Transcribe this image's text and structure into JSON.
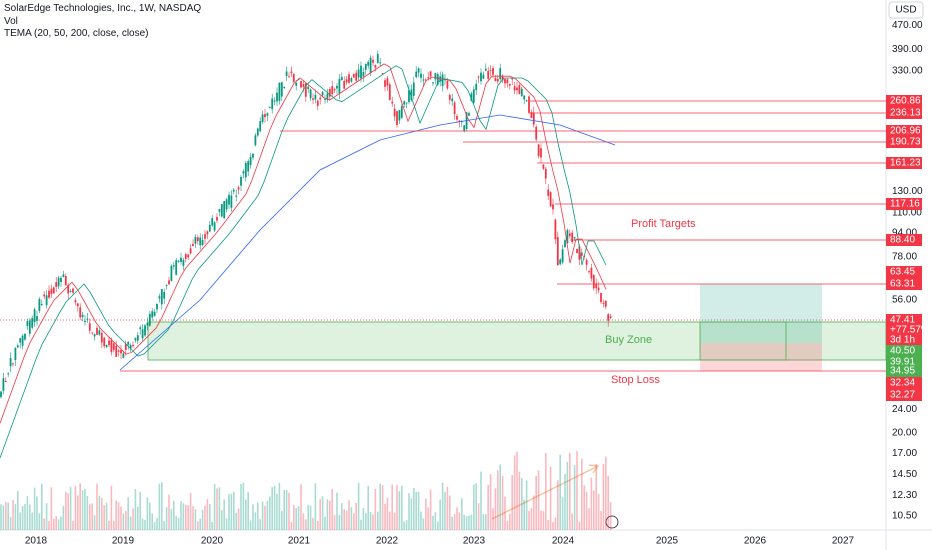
{
  "header": {
    "title": "SolarEdge Technologies, Inc., 1W, NASDAQ",
    "volume": "Vol",
    "indicator": "TEMA (20, 50, 200, close, close)",
    "currency": "USD"
  },
  "price_axis": [
    "470.00",
    "390.00",
    "330.00",
    "130.00",
    "110.00",
    "94.00",
    "78.00",
    "56.00",
    "24.00",
    "20.00",
    "17.00",
    "14.50",
    "12.30",
    "10.50"
  ],
  "level_tags": [
    {
      "label": "260.86",
      "kind": "red"
    },
    {
      "label": "236.13",
      "kind": "red"
    },
    {
      "label": "206.96",
      "kind": "red"
    },
    {
      "label": "190.73",
      "kind": "red"
    },
    {
      "label": "161.23",
      "kind": "red"
    },
    {
      "label": "117.16",
      "kind": "red"
    },
    {
      "label": "88.40",
      "kind": "red"
    },
    {
      "label": "63.45",
      "kind": "red"
    },
    {
      "label": "63.31",
      "kind": "red"
    },
    {
      "label": "47.41",
      "kind": "red"
    },
    {
      "label": "+77.57%",
      "kind": "red"
    },
    {
      "label": "3d 1h",
      "kind": "red"
    },
    {
      "label": "40.50",
      "kind": "green"
    },
    {
      "label": "39.91",
      "kind": "green"
    },
    {
      "label": "34.95",
      "kind": "green"
    },
    {
      "label": "32.34",
      "kind": "red"
    },
    {
      "label": "32.27",
      "kind": "red"
    }
  ],
  "time_axis": [
    "2018",
    "2019",
    "2020",
    "2021",
    "2022",
    "2023",
    "2024",
    "2025",
    "2026",
    "2027"
  ],
  "annotations": {
    "profit": "Profit Targets",
    "buy": "Buy Zone",
    "stop": "Stop Loss"
  }
}
